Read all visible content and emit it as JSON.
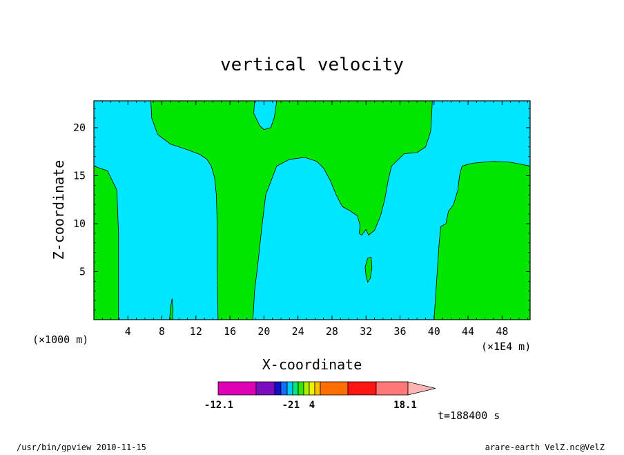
{
  "chart_data": {
    "type": "contour",
    "title": "vertical velocity",
    "xlabel": "X-coordinate",
    "ylabel": "Z-coordinate",
    "xlim": [
      0,
      51.3
    ],
    "ylim": [
      0,
      22.8
    ],
    "x_ticks": [
      "4",
      "8",
      "12",
      "16",
      "20",
      "24",
      "28",
      "32",
      "36",
      "40",
      "44",
      "48"
    ],
    "y_ticks": [
      "5",
      "10",
      "15",
      "20"
    ],
    "x_unit_left": "(×1000 m)",
    "x_unit_right": "(×1E4 m)",
    "time_label": "t=188400 s",
    "colors": {
      "positive": "#00e600",
      "negative": "#00e6ff"
    },
    "regions": [
      {
        "sign": "positive",
        "points": [
          [
            0,
            0
          ],
          [
            0,
            16
          ],
          [
            1.6,
            15.5
          ],
          [
            2.7,
            13.5
          ],
          [
            2.9,
            9
          ],
          [
            2.9,
            0
          ]
        ]
      },
      {
        "sign": "positive",
        "points": [
          [
            6.7,
            22.8
          ],
          [
            6.8,
            21
          ],
          [
            7.5,
            19.3
          ],
          [
            9,
            18.3
          ],
          [
            11,
            17.7
          ],
          [
            12.5,
            17.2
          ],
          [
            13.3,
            16.7
          ],
          [
            13.8,
            16
          ],
          [
            14.2,
            14.8
          ],
          [
            14.4,
            13
          ],
          [
            14.5,
            10
          ],
          [
            14.5,
            5
          ],
          [
            14.6,
            0
          ],
          [
            18.7,
            0
          ],
          [
            18.9,
            3
          ],
          [
            19.3,
            6
          ],
          [
            19.8,
            10
          ],
          [
            20.2,
            13
          ],
          [
            21.5,
            16
          ],
          [
            23,
            16.7
          ],
          [
            24.8,
            16.9
          ],
          [
            26.2,
            16.5
          ],
          [
            27,
            15.8
          ],
          [
            27.8,
            14.5
          ],
          [
            28.5,
            13
          ],
          [
            29.2,
            11.8
          ],
          [
            30.2,
            11.3
          ],
          [
            31,
            10.8
          ],
          [
            31.3,
            9.8
          ],
          [
            31.2,
            9
          ],
          [
            31.5,
            8.8
          ],
          [
            32,
            9.4
          ],
          [
            32.3,
            8.8
          ],
          [
            33,
            9.3
          ],
          [
            33.7,
            10.8
          ],
          [
            34.2,
            12.5
          ],
          [
            34.6,
            14.5
          ],
          [
            35,
            16
          ],
          [
            36.5,
            17.3
          ],
          [
            38,
            17.4
          ],
          [
            39,
            18
          ],
          [
            39.6,
            19.6
          ],
          [
            39.7,
            21
          ],
          [
            39.8,
            22.8
          ],
          [
            21.5,
            22.8
          ],
          [
            21.2,
            21
          ],
          [
            20.8,
            20
          ],
          [
            20,
            19.8
          ],
          [
            19.5,
            20.2
          ],
          [
            18.8,
            21.5
          ],
          [
            18.9,
            22.8
          ]
        ]
      },
      {
        "sign": "positive",
        "points": [
          [
            40,
            0
          ],
          [
            40.3,
            4
          ],
          [
            40.6,
            8
          ],
          [
            40.8,
            9.7
          ],
          [
            41.4,
            10
          ],
          [
            41.7,
            11.3
          ],
          [
            42.3,
            12
          ],
          [
            42.8,
            13.5
          ],
          [
            43,
            15
          ],
          [
            43.3,
            16
          ],
          [
            44.5,
            16.3
          ],
          [
            47,
            16.5
          ],
          [
            49,
            16.4
          ],
          [
            51.3,
            16
          ],
          [
            51.3,
            0
          ]
        ]
      },
      {
        "sign": "positive",
        "points": [
          [
            32.2,
            6.4
          ],
          [
            32.6,
            6.5
          ],
          [
            32.7,
            5.4
          ],
          [
            32.5,
            4.3
          ],
          [
            32.2,
            3.9
          ],
          [
            32,
            4.6
          ],
          [
            31.9,
            5.5
          ]
        ]
      },
      {
        "sign": "positive",
        "points": [
          [
            8.9,
            0
          ],
          [
            9.0,
            1.2
          ],
          [
            9.2,
            2.2
          ],
          [
            9.3,
            1.1
          ],
          [
            9.25,
            0
          ]
        ]
      }
    ],
    "colorbar": {
      "min_label": "-12.1",
      "max_label": "18.1",
      "tick_labels": [
        "-2",
        "1",
        "4"
      ],
      "colors": [
        "#e000b4",
        "#7c0cc0",
        "#1010cc",
        "#1070ff",
        "#00c8ff",
        "#00e67a",
        "#36e600",
        "#a8f000",
        "#f0f000",
        "#ffc000",
        "#ff6e00",
        "#ff1414",
        "#ff7878",
        "#ffb4b4"
      ]
    }
  },
  "footer": {
    "left": "/usr/bin/gpview   2010-11-15",
    "right": "arare-earth_VelZ.nc@VelZ"
  }
}
